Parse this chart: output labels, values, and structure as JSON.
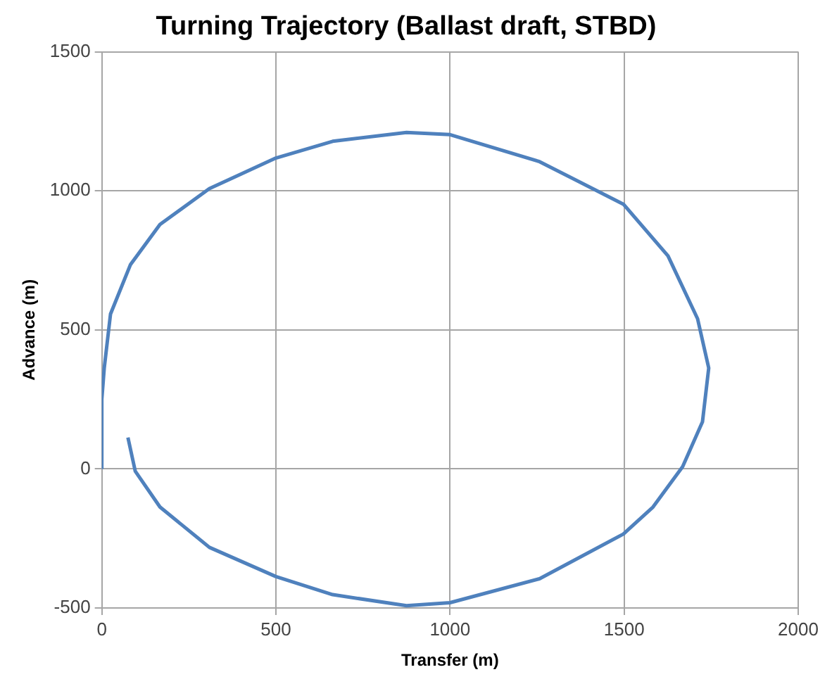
{
  "chart_data": {
    "type": "line",
    "title": "Turning Trajectory (Ballast draft, STBD)",
    "xlabel": "Transfer (m)",
    "ylabel": "Advance (m)",
    "series": [
      {
        "color": "#4f81bd",
        "x": [
          0,
          0,
          7,
          25,
          82,
          167,
          309,
          500,
          663,
          875,
          1000,
          1257,
          1498,
          1626,
          1711,
          1743,
          1725,
          1668,
          1583,
          1498,
          1257,
          1000,
          875,
          663,
          500,
          309,
          167,
          96,
          75
        ],
        "values": [
          0,
          250,
          363,
          557,
          734,
          879,
          1008,
          1118,
          1178,
          1210,
          1202,
          1105,
          952,
          766,
          540,
          363,
          169,
          8,
          -137,
          -234,
          -395,
          -481,
          -492,
          -452,
          -387,
          -282,
          -137,
          -8,
          113
        ]
      }
    ],
    "xlim": [
      0,
      2000
    ],
    "xticks": [
      0,
      500,
      1000,
      1500,
      2000
    ],
    "ylim": [
      -500,
      1500
    ],
    "yticks": [
      -500,
      0,
      500,
      1000,
      1500
    ],
    "grid": true,
    "legend": false,
    "marker": "none",
    "line_style": "solid"
  }
}
